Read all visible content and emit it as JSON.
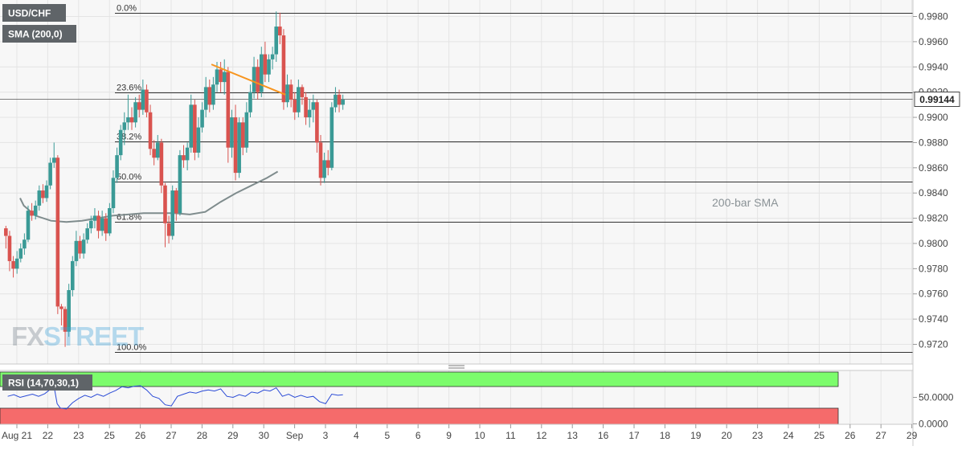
{
  "symbol_label": "USD/CHF",
  "sma_label": "SMA (200,0)",
  "rsi_label": "RSI (14,70,30,1)",
  "watermark": {
    "fx": "FX",
    "street": "STREET"
  },
  "current_price": {
    "label": "0.99144",
    "value": 0.99144
  },
  "colors": {
    "up": "#3a9a96",
    "down": "#d9534f",
    "trend": "#f7941d",
    "sma": "#7f8c8d",
    "rsi_line": "#2b4bd6",
    "rsi_overbought": "#7cfc6c",
    "rsi_oversold": "#f56b6b",
    "label_box": "#5f6468"
  },
  "chart_data": [
    {
      "type": "candlestick",
      "title": "",
      "ylim": [
        0.9712,
        0.9988
      ],
      "y_ticks": [
        "0.9980",
        "0.9960",
        "0.9940",
        "0.9920",
        "0.9900",
        "0.9880",
        "0.9860",
        "0.9840",
        "0.9820",
        "0.9800",
        "0.9780",
        "0.9760",
        "0.9740",
        "0.9720"
      ],
      "x_ticks": [
        "Aug 21",
        "22",
        "23",
        "25",
        "26",
        "27",
        "28",
        "29",
        "30",
        "Sep",
        "3",
        "4",
        "5",
        "6",
        "9",
        "10",
        "11",
        "12",
        "13",
        "16",
        "17",
        "18",
        "19",
        "20",
        "23",
        "24",
        "25",
        "26",
        "27",
        "29"
      ],
      "fibonacci": [
        {
          "label": "0.0%",
          "value": 0.9983
        },
        {
          "label": "23.6%",
          "value": 0.992
        },
        {
          "label": "38.2%",
          "value": 0.9881
        },
        {
          "label": "50.0%",
          "value": 0.9849
        },
        {
          "label": "61.8%",
          "value": 0.9817
        },
        {
          "label": "100.0%",
          "value": 0.9714
        }
      ],
      "sma": {
        "label": "200-bar SMA",
        "points": [
          [
            0,
            0.9836
          ],
          [
            0.12,
            0.983
          ],
          [
            0.5,
            0.9822
          ],
          [
            1.0,
            0.9818
          ],
          [
            1.5,
            0.9817
          ],
          [
            2.0,
            0.9818
          ],
          [
            2.5,
            0.982
          ],
          [
            3.0,
            0.9822
          ],
          [
            3.5,
            0.9823
          ],
          [
            4.0,
            0.9824
          ],
          [
            4.5,
            0.9824
          ],
          [
            5.0,
            0.9824
          ],
          [
            5.5,
            0.9823
          ],
          [
            6.0,
            0.9825
          ],
          [
            6.5,
            0.9833
          ],
          [
            7.0,
            0.984
          ],
          [
            7.5,
            0.9846
          ],
          [
            8.0,
            0.9852
          ],
          [
            8.35,
            0.9857
          ]
        ]
      },
      "trendline": {
        "points": [
          [
            6.2,
            0.9942
          ],
          [
            8.6,
            0.9918
          ]
        ]
      },
      "candles": [
        {
          "x": -0.46,
          "o": 0.9812,
          "h": 0.9814,
          "l": 0.9796,
          "c": 0.9806
        },
        {
          "x": -0.34,
          "o": 0.9806,
          "h": 0.981,
          "l": 0.9778,
          "c": 0.9786
        },
        {
          "x": -0.22,
          "o": 0.9786,
          "h": 0.979,
          "l": 0.9773,
          "c": 0.978
        },
        {
          "x": -0.1,
          "o": 0.978,
          "h": 0.9794,
          "l": 0.9776,
          "c": 0.9788
        },
        {
          "x": 0.02,
          "o": 0.9788,
          "h": 0.98,
          "l": 0.9785,
          "c": 0.9796
        },
        {
          "x": 0.14,
          "o": 0.9796,
          "h": 0.9808,
          "l": 0.9791,
          "c": 0.9803
        },
        {
          "x": 0.26,
          "o": 0.9803,
          "h": 0.983,
          "l": 0.9801,
          "c": 0.9826
        },
        {
          "x": 0.38,
          "o": 0.9826,
          "h": 0.9832,
          "l": 0.9818,
          "c": 0.9822
        },
        {
          "x": 0.5,
          "o": 0.9822,
          "h": 0.9834,
          "l": 0.9819,
          "c": 0.983
        },
        {
          "x": 0.62,
          "o": 0.983,
          "h": 0.9846,
          "l": 0.9826,
          "c": 0.9842
        },
        {
          "x": 0.74,
          "o": 0.9842,
          "h": 0.9847,
          "l": 0.9832,
          "c": 0.9836
        },
        {
          "x": 0.86,
          "o": 0.9836,
          "h": 0.985,
          "l": 0.9833,
          "c": 0.9846
        },
        {
          "x": 0.98,
          "o": 0.9846,
          "h": 0.9868,
          "l": 0.9843,
          "c": 0.9864
        },
        {
          "x": 1.1,
          "o": 0.9864,
          "h": 0.988,
          "l": 0.986,
          "c": 0.9868
        },
        {
          "x": 1.22,
          "o": 0.9868,
          "h": 0.987,
          "l": 0.9744,
          "c": 0.975
        },
        {
          "x": 1.34,
          "o": 0.975,
          "h": 0.9752,
          "l": 0.9735,
          "c": 0.9748
        },
        {
          "x": 1.46,
          "o": 0.9748,
          "h": 0.975,
          "l": 0.9718,
          "c": 0.973
        },
        {
          "x": 1.58,
          "o": 0.973,
          "h": 0.9768,
          "l": 0.9726,
          "c": 0.9763
        },
        {
          "x": 1.7,
          "o": 0.9763,
          "h": 0.979,
          "l": 0.9758,
          "c": 0.9786
        },
        {
          "x": 1.82,
          "o": 0.9786,
          "h": 0.981,
          "l": 0.9782,
          "c": 0.9802
        },
        {
          "x": 1.94,
          "o": 0.9802,
          "h": 0.9806,
          "l": 0.9788,
          "c": 0.9792
        },
        {
          "x": 2.06,
          "o": 0.9792,
          "h": 0.9808,
          "l": 0.9788,
          "c": 0.9803
        },
        {
          "x": 2.18,
          "o": 0.9803,
          "h": 0.9816,
          "l": 0.98,
          "c": 0.9812
        },
        {
          "x": 2.3,
          "o": 0.9812,
          "h": 0.9822,
          "l": 0.9808,
          "c": 0.9818
        },
        {
          "x": 2.42,
          "o": 0.9818,
          "h": 0.9828,
          "l": 0.9812,
          "c": 0.9822
        },
        {
          "x": 2.54,
          "o": 0.9822,
          "h": 0.9826,
          "l": 0.9804,
          "c": 0.981
        },
        {
          "x": 2.66,
          "o": 0.981,
          "h": 0.9826,
          "l": 0.9806,
          "c": 0.982
        },
        {
          "x": 2.78,
          "o": 0.982,
          "h": 0.9824,
          "l": 0.9802,
          "c": 0.9808
        },
        {
          "x": 2.9,
          "o": 0.9808,
          "h": 0.9832,
          "l": 0.9806,
          "c": 0.9828
        },
        {
          "x": 3.02,
          "o": 0.9828,
          "h": 0.9858,
          "l": 0.9824,
          "c": 0.9852
        },
        {
          "x": 3.14,
          "o": 0.9852,
          "h": 0.9876,
          "l": 0.9848,
          "c": 0.987
        },
        {
          "x": 3.26,
          "o": 0.987,
          "h": 0.9894,
          "l": 0.9866,
          "c": 0.989
        },
        {
          "x": 3.38,
          "o": 0.989,
          "h": 0.9904,
          "l": 0.9878,
          "c": 0.9896
        },
        {
          "x": 3.5,
          "o": 0.9896,
          "h": 0.9918,
          "l": 0.989,
          "c": 0.99
        },
        {
          "x": 3.62,
          "o": 0.99,
          "h": 0.9908,
          "l": 0.989,
          "c": 0.9896
        },
        {
          "x": 3.74,
          "o": 0.9896,
          "h": 0.9916,
          "l": 0.9892,
          "c": 0.9912
        },
        {
          "x": 3.86,
          "o": 0.9912,
          "h": 0.9918,
          "l": 0.99,
          "c": 0.9906
        },
        {
          "x": 3.98,
          "o": 0.9906,
          "h": 0.993,
          "l": 0.9902,
          "c": 0.9922
        },
        {
          "x": 4.1,
          "o": 0.9922,
          "h": 0.9926,
          "l": 0.99,
          "c": 0.9904
        },
        {
          "x": 4.22,
          "o": 0.9904,
          "h": 0.991,
          "l": 0.987,
          "c": 0.9875
        },
        {
          "x": 4.34,
          "o": 0.9875,
          "h": 0.9882,
          "l": 0.9862,
          "c": 0.9868
        },
        {
          "x": 4.46,
          "o": 0.9868,
          "h": 0.9886,
          "l": 0.9866,
          "c": 0.988
        },
        {
          "x": 4.58,
          "o": 0.988,
          "h": 0.9883,
          "l": 0.984,
          "c": 0.9846
        },
        {
          "x": 4.7,
          "o": 0.9846,
          "h": 0.9848,
          "l": 0.9797,
          "c": 0.9816
        },
        {
          "x": 4.82,
          "o": 0.9816,
          "h": 0.9822,
          "l": 0.98,
          "c": 0.9806
        },
        {
          "x": 4.94,
          "o": 0.9806,
          "h": 0.9846,
          "l": 0.9803,
          "c": 0.9842
        },
        {
          "x": 5.06,
          "o": 0.9842,
          "h": 0.9844,
          "l": 0.9818,
          "c": 0.9824
        },
        {
          "x": 5.18,
          "o": 0.9824,
          "h": 0.9874,
          "l": 0.9822,
          "c": 0.987
        },
        {
          "x": 5.3,
          "o": 0.987,
          "h": 0.9878,
          "l": 0.986,
          "c": 0.9866
        },
        {
          "x": 5.42,
          "o": 0.9866,
          "h": 0.988,
          "l": 0.9858,
          "c": 0.9876
        },
        {
          "x": 5.54,
          "o": 0.9876,
          "h": 0.9918,
          "l": 0.9872,
          "c": 0.991
        },
        {
          "x": 5.66,
          "o": 0.991,
          "h": 0.9914,
          "l": 0.9866,
          "c": 0.9872
        },
        {
          "x": 5.78,
          "o": 0.9872,
          "h": 0.99,
          "l": 0.9868,
          "c": 0.9892
        },
        {
          "x": 5.9,
          "o": 0.9892,
          "h": 0.9912,
          "l": 0.9888,
          "c": 0.9906
        },
        {
          "x": 6.02,
          "o": 0.9906,
          "h": 0.9932,
          "l": 0.99,
          "c": 0.9924
        },
        {
          "x": 6.14,
          "o": 0.9924,
          "h": 0.993,
          "l": 0.9904,
          "c": 0.991
        },
        {
          "x": 6.26,
          "o": 0.991,
          "h": 0.9932,
          "l": 0.9906,
          "c": 0.9926
        },
        {
          "x": 6.38,
          "o": 0.9926,
          "h": 0.9944,
          "l": 0.992,
          "c": 0.9938
        },
        {
          "x": 6.5,
          "o": 0.9938,
          "h": 0.9944,
          "l": 0.992,
          "c": 0.9928
        },
        {
          "x": 6.62,
          "o": 0.9928,
          "h": 0.9946,
          "l": 0.9918,
          "c": 0.9936
        },
        {
          "x": 6.74,
          "o": 0.9936,
          "h": 0.994,
          "l": 0.9864,
          "c": 0.9876
        },
        {
          "x": 6.86,
          "o": 0.9876,
          "h": 0.9906,
          "l": 0.9868,
          "c": 0.99
        },
        {
          "x": 6.98,
          "o": 0.99,
          "h": 0.991,
          "l": 0.985,
          "c": 0.9856
        },
        {
          "x": 7.1,
          "o": 0.9856,
          "h": 0.99,
          "l": 0.9852,
          "c": 0.9896
        },
        {
          "x": 7.22,
          "o": 0.9896,
          "h": 0.99,
          "l": 0.987,
          "c": 0.9876
        },
        {
          "x": 7.34,
          "o": 0.9876,
          "h": 0.9912,
          "l": 0.9872,
          "c": 0.9904
        },
        {
          "x": 7.46,
          "o": 0.9904,
          "h": 0.9926,
          "l": 0.99,
          "c": 0.992
        },
        {
          "x": 7.58,
          "o": 0.992,
          "h": 0.9948,
          "l": 0.9915,
          "c": 0.994
        },
        {
          "x": 7.7,
          "o": 0.994,
          "h": 0.9946,
          "l": 0.9914,
          "c": 0.992
        },
        {
          "x": 7.82,
          "o": 0.992,
          "h": 0.9956,
          "l": 0.9916,
          "c": 0.995
        },
        {
          "x": 7.94,
          "o": 0.995,
          "h": 0.996,
          "l": 0.9928,
          "c": 0.9934
        },
        {
          "x": 8.06,
          "o": 0.9934,
          "h": 0.995,
          "l": 0.9928,
          "c": 0.9946
        },
        {
          "x": 8.18,
          "o": 0.9946,
          "h": 0.9956,
          "l": 0.9938,
          "c": 0.995
        },
        {
          "x": 8.3,
          "o": 0.995,
          "h": 0.9984,
          "l": 0.9944,
          "c": 0.9972
        },
        {
          "x": 8.42,
          "o": 0.9972,
          "h": 0.9983,
          "l": 0.9958,
          "c": 0.9965
        },
        {
          "x": 8.54,
          "o": 0.9965,
          "h": 0.997,
          "l": 0.9906,
          "c": 0.9912
        },
        {
          "x": 8.66,
          "o": 0.9912,
          "h": 0.9934,
          "l": 0.9908,
          "c": 0.9926
        },
        {
          "x": 8.78,
          "o": 0.9926,
          "h": 0.993,
          "l": 0.9908,
          "c": 0.9914
        },
        {
          "x": 8.9,
          "o": 0.9914,
          "h": 0.992,
          "l": 0.9898,
          "c": 0.9904
        },
        {
          "x": 9.02,
          "o": 0.9904,
          "h": 0.993,
          "l": 0.99,
          "c": 0.9924
        },
        {
          "x": 9.14,
          "o": 0.9924,
          "h": 0.9926,
          "l": 0.991,
          "c": 0.9916
        },
        {
          "x": 9.26,
          "o": 0.9916,
          "h": 0.992,
          "l": 0.9894,
          "c": 0.99
        },
        {
          "x": 9.38,
          "o": 0.99,
          "h": 0.9914,
          "l": 0.9892,
          "c": 0.9906
        },
        {
          "x": 9.5,
          "o": 0.9906,
          "h": 0.9918,
          "l": 0.9896,
          "c": 0.9912
        },
        {
          "x": 9.62,
          "o": 0.9912,
          "h": 0.9914,
          "l": 0.9872,
          "c": 0.988
        },
        {
          "x": 9.74,
          "o": 0.988,
          "h": 0.9886,
          "l": 0.9846,
          "c": 0.9852
        },
        {
          "x": 9.86,
          "o": 0.9852,
          "h": 0.9872,
          "l": 0.9848,
          "c": 0.9866
        },
        {
          "x": 9.98,
          "o": 0.9866,
          "h": 0.9874,
          "l": 0.9854,
          "c": 0.986
        },
        {
          "x": 10.1,
          "o": 0.986,
          "h": 0.9912,
          "l": 0.9858,
          "c": 0.9908
        },
        {
          "x": 10.22,
          "o": 0.9908,
          "h": 0.9924,
          "l": 0.9904,
          "c": 0.9918
        },
        {
          "x": 10.34,
          "o": 0.9918,
          "h": 0.9922,
          "l": 0.9904,
          "c": 0.991
        },
        {
          "x": 10.46,
          "o": 0.991,
          "h": 0.9918,
          "l": 0.9906,
          "c": 0.9914
        }
      ],
      "day_spacing_px": 38.4
    },
    {
      "type": "line",
      "title": "",
      "ylim": [
        0,
        100
      ],
      "overbought": 70,
      "oversold": 30,
      "y_ticks": [
        "50.0000",
        "0.0000"
      ],
      "points": [
        [
          -0.4,
          52
        ],
        [
          -0.2,
          55
        ],
        [
          0.0,
          50
        ],
        [
          0.2,
          53
        ],
        [
          0.4,
          56
        ],
        [
          0.6,
          52
        ],
        [
          0.8,
          57
        ],
        [
          1.0,
          66
        ],
        [
          1.1,
          71
        ],
        [
          1.2,
          38
        ],
        [
          1.3,
          30
        ],
        [
          1.5,
          28
        ],
        [
          1.7,
          40
        ],
        [
          1.9,
          48
        ],
        [
          2.1,
          54
        ],
        [
          2.3,
          50
        ],
        [
          2.5,
          56
        ],
        [
          2.7,
          52
        ],
        [
          2.9,
          58
        ],
        [
          3.1,
          63
        ],
        [
          3.3,
          70
        ],
        [
          3.5,
          68
        ],
        [
          3.7,
          71
        ],
        [
          3.9,
          72
        ],
        [
          4.1,
          64
        ],
        [
          4.3,
          52
        ],
        [
          4.5,
          48
        ],
        [
          4.7,
          36
        ],
        [
          4.9,
          34
        ],
        [
          5.1,
          52
        ],
        [
          5.3,
          56
        ],
        [
          5.5,
          60
        ],
        [
          5.7,
          58
        ],
        [
          5.9,
          62
        ],
        [
          6.1,
          64
        ],
        [
          6.3,
          62
        ],
        [
          6.5,
          66
        ],
        [
          6.7,
          52
        ],
        [
          6.9,
          50
        ],
        [
          7.1,
          55
        ],
        [
          7.3,
          52
        ],
        [
          7.5,
          60
        ],
        [
          7.7,
          58
        ],
        [
          7.9,
          64
        ],
        [
          8.1,
          62
        ],
        [
          8.3,
          68
        ],
        [
          8.5,
          52
        ],
        [
          8.7,
          56
        ],
        [
          8.9,
          50
        ],
        [
          9.1,
          54
        ],
        [
          9.3,
          50
        ],
        [
          9.5,
          52
        ],
        [
          9.7,
          42
        ],
        [
          9.9,
          38
        ],
        [
          10.1,
          56
        ],
        [
          10.3,
          54
        ],
        [
          10.46,
          55
        ]
      ]
    }
  ]
}
